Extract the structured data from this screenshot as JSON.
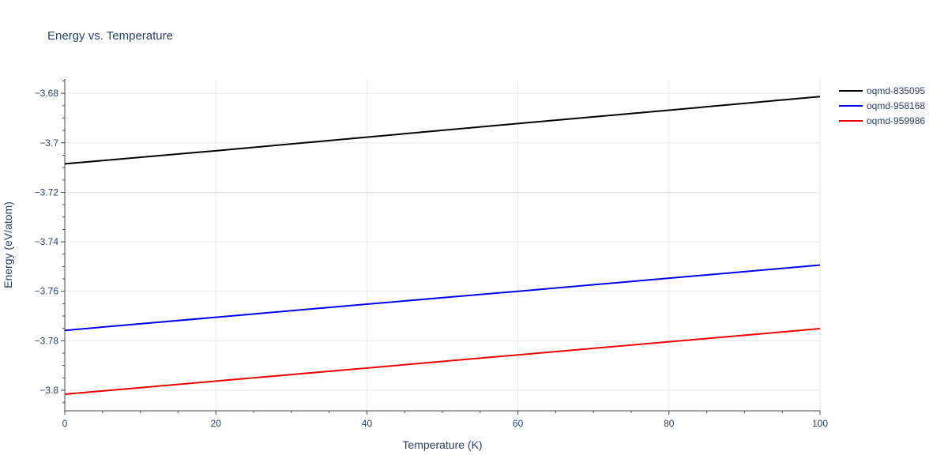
{
  "chart_data": {
    "type": "line",
    "title": "Energy vs. Temperature",
    "xlabel": "Temperature (K)",
    "ylabel": "Energy (eV/atom)",
    "xlim": [
      0,
      100
    ],
    "ylim": [
      -3.8083,
      -3.6742
    ],
    "x_ticks": [
      0,
      20,
      40,
      60,
      80,
      100
    ],
    "x_tick_labels": [
      "0",
      "20",
      "40",
      "60",
      "80",
      "100"
    ],
    "y_ticks": [
      -3.8,
      -3.78,
      -3.76,
      -3.74,
      -3.72,
      -3.7,
      -3.68
    ],
    "y_tick_labels": [
      "−3.8",
      "−3.78",
      "−3.76",
      "−3.74",
      "−3.72",
      "−3.7",
      "−3.68"
    ],
    "grid": true,
    "legend_position": "top-right, outside plot",
    "x": [
      0,
      20,
      40,
      60,
      80,
      100
    ],
    "series": [
      {
        "name": "oqmd-835095",
        "color": "#000000",
        "values": [
          -3.7085,
          -3.7032,
          -3.6977,
          -3.6922,
          -3.6868,
          -3.6813
        ]
      },
      {
        "name": "oqmd-958168",
        "color": "#0000ee",
        "values": [
          -3.7758,
          -3.7705,
          -3.7652,
          -3.76,
          -3.7547,
          -3.7494
        ]
      },
      {
        "name": "oqmd-959986",
        "color": "#ee0000",
        "values": [
          -3.8016,
          -3.7963,
          -3.791,
          -3.7857,
          -3.7804,
          -3.7751
        ]
      }
    ]
  }
}
